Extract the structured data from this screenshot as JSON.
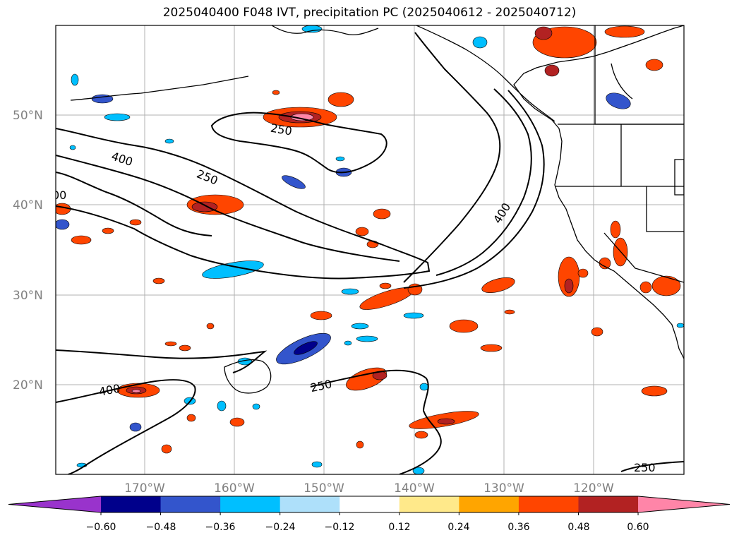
{
  "title": "2025040400 F048 IVT, precipitation PC (2025040612 - 2025040712)",
  "map": {
    "lat_labels": [
      "50°N",
      "40°N",
      "30°N",
      "20°N"
    ],
    "lon_labels": [
      "170°W",
      "160°W",
      "150°W",
      "140°W",
      "130°W",
      "120°W"
    ],
    "grid": true,
    "contour_levels": [
      "250",
      "400"
    ]
  },
  "colorbar": {
    "ticks": [
      "−0.60",
      "−0.48",
      "−0.36",
      "−0.24",
      "−0.12",
      "0.12",
      "0.24",
      "0.36",
      "0.48",
      "0.60"
    ],
    "colors": [
      "#9933cc",
      "#00008b",
      "#3355cc",
      "#00bfff",
      "#aee0fa",
      "#ffffff",
      "#ffe98a",
      "#ffa500",
      "#ff4500",
      "#b22222",
      "#ff85a8"
    ],
    "extend": "both"
  }
}
